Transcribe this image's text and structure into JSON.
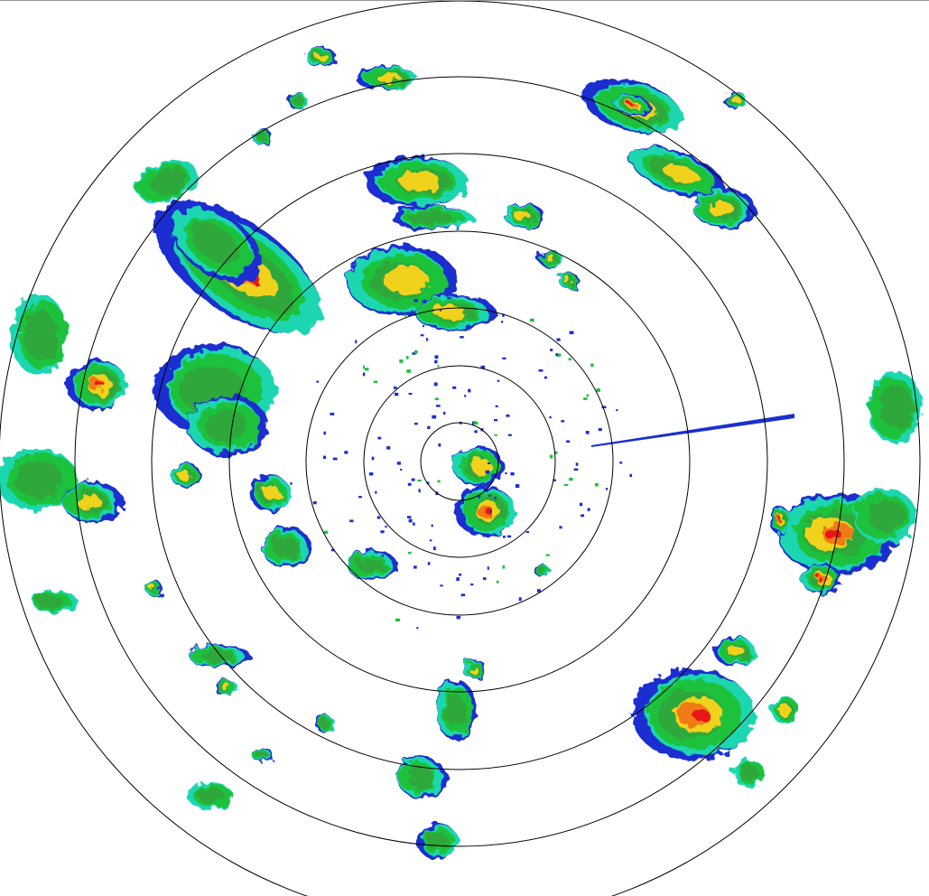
{
  "display": {
    "type": "radar-ppi",
    "range_ring_count": 7,
    "background_color": "#ffffff",
    "ring_color": "#000000"
  },
  "reflectivity_palette": {
    "weak": "#1a2fd0",
    "light": "#1fd6b0",
    "moderate": "#1fc23a",
    "moderate_dark": "#2ea83a",
    "heavy": "#f0d21e",
    "very_heavy": "#f07a14",
    "intense": "#e81818"
  }
}
